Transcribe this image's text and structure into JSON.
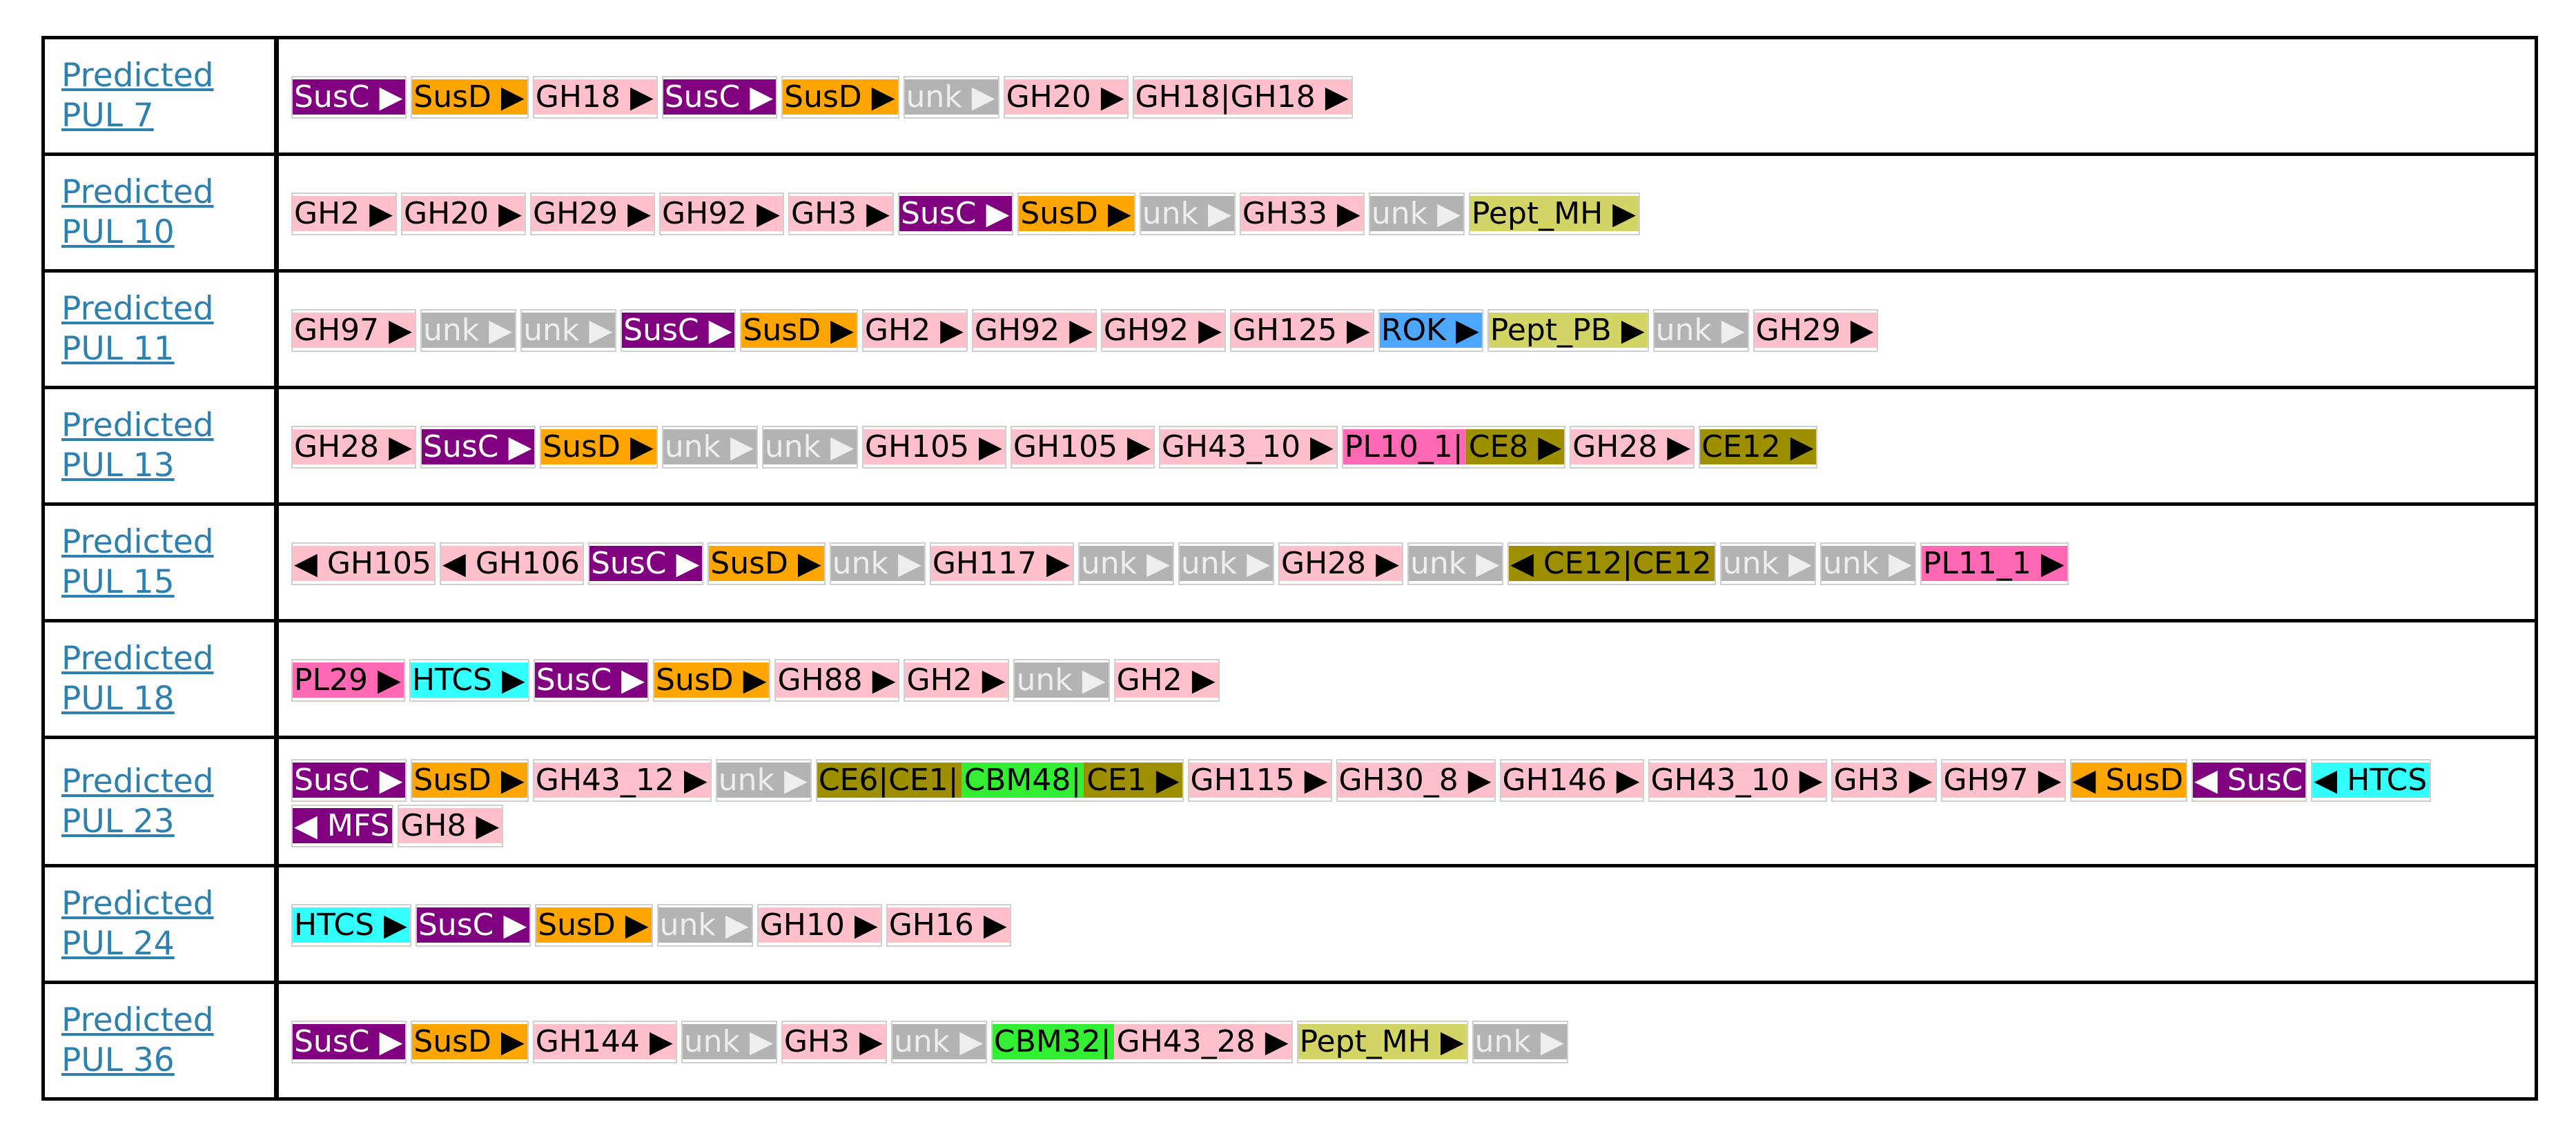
{
  "rows": [
    {
      "label": "Predicted PUL 7",
      "genes": [
        {
          "parts": [
            {
              "text": "SusC ▶",
              "color": "#800080",
              "text_color": "#ffffff"
            }
          ]
        },
        {
          "parts": [
            {
              "text": "SusD ▶",
              "color": "#ffa500",
              "text_color": "#000000"
            }
          ]
        },
        {
          "parts": [
            {
              "text": "GH18 ▶",
              "color": "#ffc0cb",
              "text_color": "#000000"
            }
          ]
        },
        {
          "parts": [
            {
              "text": "SusC ▶",
              "color": "#800080",
              "text_color": "#ffffff"
            }
          ]
        },
        {
          "parts": [
            {
              "text": "SusD ▶",
              "color": "#ffa500",
              "text_color": "#000000"
            }
          ]
        },
        {
          "parts": [
            {
              "text": "unk ▶",
              "color": "#b3b3b3",
              "text_color": "#eeeeee"
            }
          ]
        },
        {
          "parts": [
            {
              "text": "GH20 ▶",
              "color": "#ffc0cb",
              "text_color": "#000000"
            }
          ]
        },
        {
          "parts": [
            {
              "text": "GH18|GH18 ▶",
              "color": "#ffc0cb",
              "text_color": "#000000"
            }
          ]
        }
      ]
    },
    {
      "label": "Predicted PUL 10",
      "genes": [
        {
          "parts": [
            {
              "text": "GH2 ▶",
              "color": "#ffc0cb",
              "text_color": "#000000"
            }
          ]
        },
        {
          "parts": [
            {
              "text": "GH20 ▶",
              "color": "#ffc0cb",
              "text_color": "#000000"
            }
          ]
        },
        {
          "parts": [
            {
              "text": "GH29 ▶",
              "color": "#ffc0cb",
              "text_color": "#000000"
            }
          ]
        },
        {
          "parts": [
            {
              "text": "GH92 ▶",
              "color": "#ffc0cb",
              "text_color": "#000000"
            }
          ]
        },
        {
          "parts": [
            {
              "text": "GH3 ▶",
              "color": "#ffc0cb",
              "text_color": "#000000"
            }
          ]
        },
        {
          "parts": [
            {
              "text": "SusC ▶",
              "color": "#800080",
              "text_color": "#ffffff"
            }
          ]
        },
        {
          "parts": [
            {
              "text": "SusD ▶",
              "color": "#ffa500",
              "text_color": "#000000"
            }
          ]
        },
        {
          "parts": [
            {
              "text": "unk ▶",
              "color": "#b3b3b3",
              "text_color": "#eeeeee"
            }
          ]
        },
        {
          "parts": [
            {
              "text": "GH33 ▶",
              "color": "#ffc0cb",
              "text_color": "#000000"
            }
          ]
        },
        {
          "parts": [
            {
              "text": "unk ▶",
              "color": "#b3b3b3",
              "text_color": "#eeeeee"
            }
          ]
        },
        {
          "parts": [
            {
              "text": "Pept_MH ▶",
              "color": "#d2d466",
              "text_color": "#000000"
            }
          ]
        }
      ]
    },
    {
      "label": "Predicted PUL 11",
      "genes": [
        {
          "parts": [
            {
              "text": "GH97 ▶",
              "color": "#ffc0cb",
              "text_color": "#000000"
            }
          ]
        },
        {
          "parts": [
            {
              "text": "unk ▶",
              "color": "#b3b3b3",
              "text_color": "#eeeeee"
            }
          ]
        },
        {
          "parts": [
            {
              "text": "unk ▶",
              "color": "#b3b3b3",
              "text_color": "#eeeeee"
            }
          ]
        },
        {
          "parts": [
            {
              "text": "SusC ▶",
              "color": "#800080",
              "text_color": "#ffffff"
            }
          ]
        },
        {
          "parts": [
            {
              "text": "SusD ▶",
              "color": "#ffa500",
              "text_color": "#000000"
            }
          ]
        },
        {
          "parts": [
            {
              "text": "GH2 ▶",
              "color": "#ffc0cb",
              "text_color": "#000000"
            }
          ]
        },
        {
          "parts": [
            {
              "text": "GH92 ▶",
              "color": "#ffc0cb",
              "text_color": "#000000"
            }
          ]
        },
        {
          "parts": [
            {
              "text": "GH92 ▶",
              "color": "#ffc0cb",
              "text_color": "#000000"
            }
          ]
        },
        {
          "parts": [
            {
              "text": "GH125 ▶",
              "color": "#ffc0cb",
              "text_color": "#000000"
            }
          ]
        },
        {
          "parts": [
            {
              "text": "ROK ▶",
              "color": "#4da6ff",
              "text_color": "#000000"
            }
          ]
        },
        {
          "parts": [
            {
              "text": "Pept_PB ▶",
              "color": "#d2d466",
              "text_color": "#000000"
            }
          ]
        },
        {
          "parts": [
            {
              "text": "unk ▶",
              "color": "#b3b3b3",
              "text_color": "#eeeeee"
            }
          ]
        },
        {
          "parts": [
            {
              "text": "GH29 ▶",
              "color": "#ffc0cb",
              "text_color": "#000000"
            }
          ]
        }
      ]
    },
    {
      "label": "Predicted PUL 13",
      "genes": [
        {
          "parts": [
            {
              "text": "GH28 ▶",
              "color": "#ffc0cb",
              "text_color": "#000000"
            }
          ]
        },
        {
          "parts": [
            {
              "text": "SusC ▶",
              "color": "#800080",
              "text_color": "#ffffff"
            }
          ]
        },
        {
          "parts": [
            {
              "text": "SusD ▶",
              "color": "#ffa500",
              "text_color": "#000000"
            }
          ]
        },
        {
          "parts": [
            {
              "text": "unk ▶",
              "color": "#b3b3b3",
              "text_color": "#eeeeee"
            }
          ]
        },
        {
          "parts": [
            {
              "text": "unk ▶",
              "color": "#b3b3b3",
              "text_color": "#eeeeee"
            }
          ]
        },
        {
          "parts": [
            {
              "text": "GH105 ▶",
              "color": "#ffc0cb",
              "text_color": "#000000"
            }
          ]
        },
        {
          "parts": [
            {
              "text": "GH105 ▶",
              "color": "#ffc0cb",
              "text_color": "#000000"
            }
          ]
        },
        {
          "parts": [
            {
              "text": "GH43_10 ▶",
              "color": "#ffc0cb",
              "text_color": "#000000"
            }
          ]
        },
        {
          "parts": [
            {
              "text": "PL10_1|",
              "color": "#ff69b4",
              "text_color": "#000000"
            },
            {
              "text": "CE8 ▶",
              "color": "#9e8f00",
              "text_color": "#000000"
            }
          ]
        },
        {
          "parts": [
            {
              "text": "GH28 ▶",
              "color": "#ffc0cb",
              "text_color": "#000000"
            }
          ]
        },
        {
          "parts": [
            {
              "text": "CE12 ▶",
              "color": "#9e8f00",
              "text_color": "#000000"
            }
          ]
        }
      ]
    },
    {
      "label": "Predicted PUL 15",
      "genes": [
        {
          "parts": [
            {
              "text": "◀ GH105",
              "color": "#ffc0cb",
              "text_color": "#000000"
            }
          ]
        },
        {
          "parts": [
            {
              "text": "◀ GH106",
              "color": "#ffc0cb",
              "text_color": "#000000"
            }
          ]
        },
        {
          "parts": [
            {
              "text": "SusC ▶",
              "color": "#800080",
              "text_color": "#ffffff"
            }
          ]
        },
        {
          "parts": [
            {
              "text": "SusD ▶",
              "color": "#ffa500",
              "text_color": "#000000"
            }
          ]
        },
        {
          "parts": [
            {
              "text": "unk ▶",
              "color": "#b3b3b3",
              "text_color": "#eeeeee"
            }
          ]
        },
        {
          "parts": [
            {
              "text": "GH117 ▶",
              "color": "#ffc0cb",
              "text_color": "#000000"
            }
          ]
        },
        {
          "parts": [
            {
              "text": "unk ▶",
              "color": "#b3b3b3",
              "text_color": "#eeeeee"
            }
          ]
        },
        {
          "parts": [
            {
              "text": "unk ▶",
              "color": "#b3b3b3",
              "text_color": "#eeeeee"
            }
          ]
        },
        {
          "parts": [
            {
              "text": "GH28 ▶",
              "color": "#ffc0cb",
              "text_color": "#000000"
            }
          ]
        },
        {
          "parts": [
            {
              "text": "unk ▶",
              "color": "#b3b3b3",
              "text_color": "#eeeeee"
            }
          ]
        },
        {
          "parts": [
            {
              "text": "◀ CE12|CE12",
              "color": "#9e8f00",
              "text_color": "#000000"
            }
          ]
        },
        {
          "parts": [
            {
              "text": "unk ▶",
              "color": "#b3b3b3",
              "text_color": "#eeeeee"
            }
          ]
        },
        {
          "parts": [
            {
              "text": "unk ▶",
              "color": "#b3b3b3",
              "text_color": "#eeeeee"
            }
          ]
        },
        {
          "parts": [
            {
              "text": "PL11_1 ▶",
              "color": "#ff69b4",
              "text_color": "#000000"
            }
          ]
        }
      ]
    },
    {
      "label": "Predicted PUL 18",
      "genes": [
        {
          "parts": [
            {
              "text": "PL29 ▶",
              "color": "#ff69b4",
              "text_color": "#000000"
            }
          ]
        },
        {
          "parts": [
            {
              "text": "HTCS ▶",
              "color": "#33ffff",
              "text_color": "#000000"
            }
          ]
        },
        {
          "parts": [
            {
              "text": "SusC ▶",
              "color": "#800080",
              "text_color": "#ffffff"
            }
          ]
        },
        {
          "parts": [
            {
              "text": "SusD ▶",
              "color": "#ffa500",
              "text_color": "#000000"
            }
          ]
        },
        {
          "parts": [
            {
              "text": "GH88 ▶",
              "color": "#ffc0cb",
              "text_color": "#000000"
            }
          ]
        },
        {
          "parts": [
            {
              "text": "GH2 ▶",
              "color": "#ffc0cb",
              "text_color": "#000000"
            }
          ]
        },
        {
          "parts": [
            {
              "text": "unk ▶",
              "color": "#b3b3b3",
              "text_color": "#eeeeee"
            }
          ]
        },
        {
          "parts": [
            {
              "text": "GH2 ▶",
              "color": "#ffc0cb",
              "text_color": "#000000"
            }
          ]
        }
      ]
    },
    {
      "label": "Predicted PUL 23",
      "genes": [
        {
          "parts": [
            {
              "text": "SusC ▶",
              "color": "#800080",
              "text_color": "#ffffff"
            }
          ]
        },
        {
          "parts": [
            {
              "text": "SusD ▶",
              "color": "#ffa500",
              "text_color": "#000000"
            }
          ]
        },
        {
          "parts": [
            {
              "text": "GH43_12 ▶",
              "color": "#ffc0cb",
              "text_color": "#000000"
            }
          ]
        },
        {
          "parts": [
            {
              "text": "unk ▶",
              "color": "#b3b3b3",
              "text_color": "#eeeeee"
            }
          ]
        },
        {
          "parts": [
            {
              "text": "CE6|CE1|",
              "color": "#9e8f00",
              "text_color": "#000000"
            },
            {
              "text": "CBM48|",
              "color": "#33ee33",
              "text_color": "#000000"
            },
            {
              "text": "CE1 ▶",
              "color": "#9e8f00",
              "text_color": "#000000"
            }
          ]
        },
        {
          "parts": [
            {
              "text": "GH115 ▶",
              "color": "#ffc0cb",
              "text_color": "#000000"
            }
          ]
        },
        {
          "parts": [
            {
              "text": "GH30_8 ▶",
              "color": "#ffc0cb",
              "text_color": "#000000"
            }
          ]
        },
        {
          "parts": [
            {
              "text": "GH146 ▶",
              "color": "#ffc0cb",
              "text_color": "#000000"
            }
          ]
        },
        {
          "parts": [
            {
              "text": "GH43_10 ▶",
              "color": "#ffc0cb",
              "text_color": "#000000"
            }
          ]
        },
        {
          "parts": [
            {
              "text": "GH3 ▶",
              "color": "#ffc0cb",
              "text_color": "#000000"
            }
          ]
        },
        {
          "parts": [
            {
              "text": "GH97 ▶",
              "color": "#ffc0cb",
              "text_color": "#000000"
            }
          ]
        },
        {
          "parts": [
            {
              "text": "◀ SusD",
              "color": "#ffa500",
              "text_color": "#000000"
            }
          ]
        },
        {
          "parts": [
            {
              "text": "◀ SusC",
              "color": "#800080",
              "text_color": "#ffffff"
            }
          ]
        },
        {
          "parts": [
            {
              "text": "◀ HTCS",
              "color": "#33ffff",
              "text_color": "#000000"
            }
          ]
        },
        {
          "parts": [
            {
              "text": "◀ MFS",
              "color": "#800080",
              "text_color": "#ffffff"
            }
          ]
        },
        {
          "parts": [
            {
              "text": "GH8 ▶",
              "color": "#ffc0cb",
              "text_color": "#000000"
            }
          ]
        }
      ]
    },
    {
      "label": "Predicted PUL 24",
      "genes": [
        {
          "parts": [
            {
              "text": "HTCS ▶",
              "color": "#33ffff",
              "text_color": "#000000"
            }
          ]
        },
        {
          "parts": [
            {
              "text": "SusC ▶",
              "color": "#800080",
              "text_color": "#ffffff"
            }
          ]
        },
        {
          "parts": [
            {
              "text": "SusD ▶",
              "color": "#ffa500",
              "text_color": "#000000"
            }
          ]
        },
        {
          "parts": [
            {
              "text": "unk ▶",
              "color": "#b3b3b3",
              "text_color": "#eeeeee"
            }
          ]
        },
        {
          "parts": [
            {
              "text": "GH10 ▶",
              "color": "#ffc0cb",
              "text_color": "#000000"
            }
          ]
        },
        {
          "parts": [
            {
              "text": "GH16 ▶",
              "color": "#ffc0cb",
              "text_color": "#000000"
            }
          ]
        }
      ]
    },
    {
      "label": "Predicted PUL 36",
      "genes": [
        {
          "parts": [
            {
              "text": "SusC ▶",
              "color": "#800080",
              "text_color": "#ffffff"
            }
          ]
        },
        {
          "parts": [
            {
              "text": "SusD ▶",
              "color": "#ffa500",
              "text_color": "#000000"
            }
          ]
        },
        {
          "parts": [
            {
              "text": "GH144 ▶",
              "color": "#ffc0cb",
              "text_color": "#000000"
            }
          ]
        },
        {
          "parts": [
            {
              "text": "unk ▶",
              "color": "#b3b3b3",
              "text_color": "#eeeeee"
            }
          ]
        },
        {
          "parts": [
            {
              "text": "GH3 ▶",
              "color": "#ffc0cb",
              "text_color": "#000000"
            }
          ]
        },
        {
          "parts": [
            {
              "text": "unk ▶",
              "color": "#b3b3b3",
              "text_color": "#eeeeee"
            }
          ]
        },
        {
          "parts": [
            {
              "text": "CBM32|",
              "color": "#33ee33",
              "text_color": "#000000"
            },
            {
              "text": "GH43_28 ▶",
              "color": "#ffc0cb",
              "text_color": "#000000"
            }
          ]
        },
        {
          "parts": [
            {
              "text": "Pept_MH ▶",
              "color": "#d2d466",
              "text_color": "#000000"
            }
          ]
        },
        {
          "parts": [
            {
              "text": "unk ▶",
              "color": "#b3b3b3",
              "text_color": "#eeeeee"
            }
          ]
        }
      ]
    }
  ]
}
